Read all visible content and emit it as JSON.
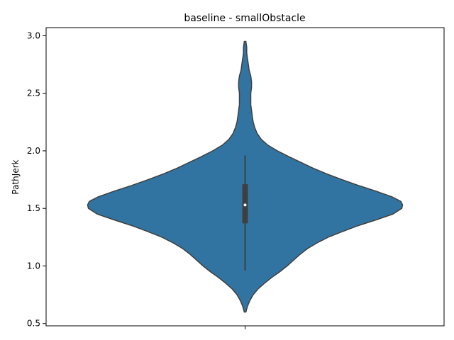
{
  "chart_data": {
    "type": "violin",
    "title": "baseline - smallObstacle",
    "xlabel": "",
    "ylabel": "PathJerk",
    "ylim": [
      0.48,
      3.07
    ],
    "yticks": [
      0.5,
      1.0,
      1.5,
      2.0,
      2.5,
      3.0
    ],
    "ytick_labels": [
      "0.5",
      "1.0",
      "1.5",
      "2.0",
      "2.5",
      "3.0"
    ],
    "grid": false,
    "fill_color": "#3274a1",
    "edge_color": "#3f3f3f",
    "violin": {
      "profile": [
        [
          0.6,
          0.01
        ],
        [
          0.65,
          0.03
        ],
        [
          0.7,
          0.06
        ],
        [
          0.75,
          0.1
        ],
        [
          0.8,
          0.16
        ],
        [
          0.85,
          0.24
        ],
        [
          0.9,
          0.33
        ],
        [
          0.95,
          0.43
        ],
        [
          1.0,
          0.52
        ],
        [
          1.05,
          0.6
        ],
        [
          1.1,
          0.68
        ],
        [
          1.15,
          0.77
        ],
        [
          1.2,
          0.89
        ],
        [
          1.25,
          1.03
        ],
        [
          1.3,
          1.21
        ],
        [
          1.35,
          1.4
        ],
        [
          1.4,
          1.62
        ],
        [
          1.45,
          1.83
        ],
        [
          1.5,
          1.94
        ],
        [
          1.53,
          1.95
        ],
        [
          1.56,
          1.93
        ],
        [
          1.6,
          1.82
        ],
        [
          1.65,
          1.62
        ],
        [
          1.7,
          1.4
        ],
        [
          1.75,
          1.2
        ],
        [
          1.8,
          1.01
        ],
        [
          1.85,
          0.84
        ],
        [
          1.9,
          0.69
        ],
        [
          1.95,
          0.54
        ],
        [
          2.0,
          0.4
        ],
        [
          2.05,
          0.28
        ],
        [
          2.1,
          0.2
        ],
        [
          2.15,
          0.15
        ],
        [
          2.2,
          0.12
        ],
        [
          2.25,
          0.1
        ],
        [
          2.3,
          0.09
        ],
        [
          2.35,
          0.08
        ],
        [
          2.4,
          0.07
        ],
        [
          2.45,
          0.07
        ],
        [
          2.5,
          0.07
        ],
        [
          2.55,
          0.08
        ],
        [
          2.6,
          0.08
        ],
        [
          2.65,
          0.07
        ],
        [
          2.7,
          0.05
        ],
        [
          2.75,
          0.04
        ],
        [
          2.8,
          0.03
        ],
        [
          2.85,
          0.02
        ],
        [
          2.9,
          0.02
        ],
        [
          2.95,
          0.01
        ]
      ],
      "whisker_low": 0.96,
      "q1": 1.37,
      "median": 1.53,
      "q3": 1.71,
      "whisker_high": 1.96
    }
  }
}
